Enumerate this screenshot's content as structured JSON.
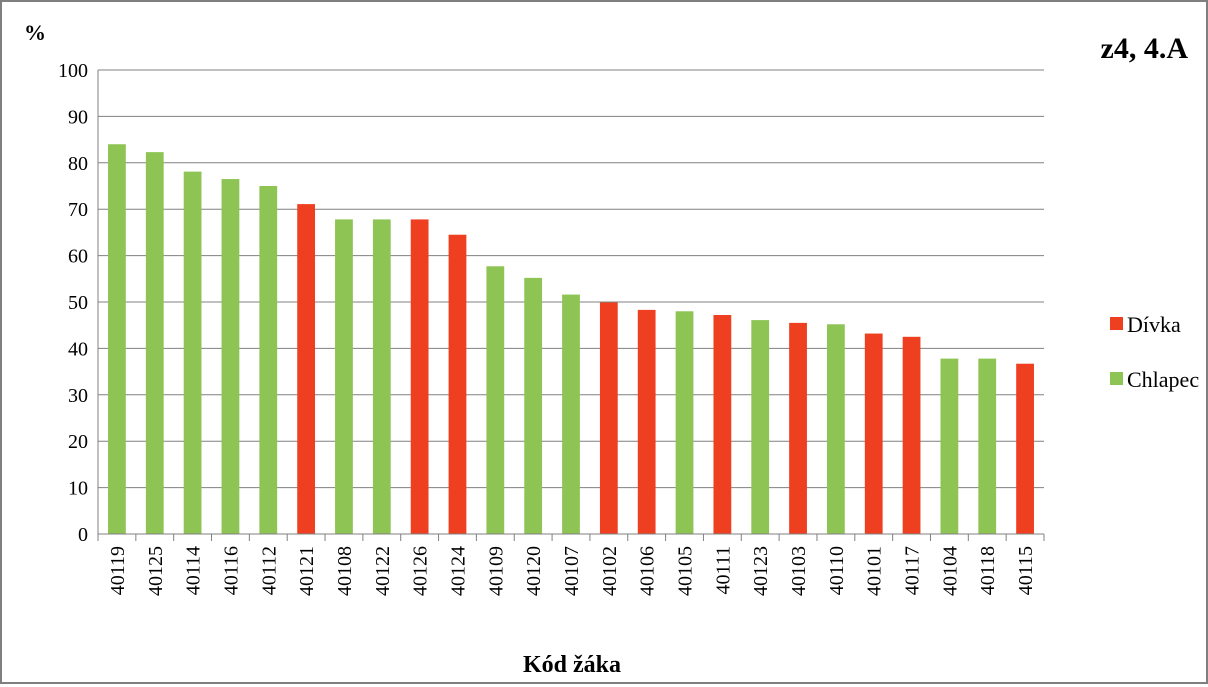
{
  "chart_data": {
    "type": "bar",
    "title": "z4, 4.A",
    "ylabel": "%",
    "xlabel": "Kód žáka",
    "ylim": [
      0,
      100
    ],
    "yticks": [
      0,
      10,
      20,
      30,
      40,
      50,
      60,
      70,
      80,
      90,
      100
    ],
    "grid": true,
    "legend_position": "right",
    "categories": [
      "40119",
      "40125",
      "40114",
      "40116",
      "40112",
      "40121",
      "40108",
      "40122",
      "40126",
      "40124",
      "40109",
      "40120",
      "40107",
      "40102",
      "40106",
      "40105",
      "40111",
      "40123",
      "40103",
      "40110",
      "40101",
      "40117",
      "40104",
      "40118",
      "40115"
    ],
    "values": [
      84,
      82.3,
      78.1,
      76.5,
      75,
      71.1,
      67.8,
      67.8,
      67.8,
      64.5,
      57.7,
      55.2,
      51.6,
      49.9,
      48.3,
      48,
      47.2,
      46.1,
      45.5,
      45.2,
      43.2,
      42.5,
      37.8,
      37.8,
      36.7
    ],
    "groups": [
      "Chlapec",
      "Chlapec",
      "Chlapec",
      "Chlapec",
      "Chlapec",
      "Dívka",
      "Chlapec",
      "Chlapec",
      "Dívka",
      "Dívka",
      "Chlapec",
      "Chlapec",
      "Chlapec",
      "Dívka",
      "Dívka",
      "Chlapec",
      "Dívka",
      "Chlapec",
      "Dívka",
      "Chlapec",
      "Dívka",
      "Dívka",
      "Chlapec",
      "Chlapec",
      "Dívka"
    ],
    "legend": [
      {
        "name": "Dívka",
        "color": "#ee4020"
      },
      {
        "name": "Chlapec",
        "color": "#8dc453"
      }
    ],
    "title_color": "#c0392b",
    "grid_color": "#808080"
  }
}
